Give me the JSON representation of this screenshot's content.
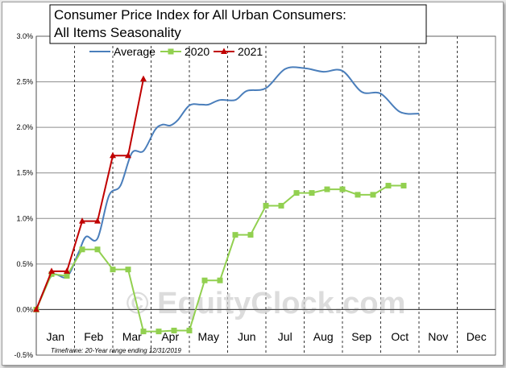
{
  "chart_data": {
    "type": "line",
    "title_lines": [
      "Consumer Price Index for All Urban Consumers:",
      "All Items Seasonality"
    ],
    "categories": [
      "Jan",
      "Feb",
      "Mar",
      "Apr",
      "May",
      "Jun",
      "Jul",
      "Aug",
      "Sep",
      "Oct",
      "Nov",
      "Dec"
    ],
    "ylim": [
      -0.5,
      3.0
    ],
    "yticks": [
      -0.5,
      0.0,
      0.5,
      1.0,
      1.5,
      2.0,
      2.5,
      3.0
    ],
    "ytick_labels": [
      "-0.5%",
      "0.0%",
      "0.5%",
      "1.0%",
      "1.5%",
      "2.0%",
      "2.5%",
      "3.0%"
    ],
    "grid": true,
    "legend_position": "top",
    "series": [
      {
        "name": "Average",
        "color": "#4a7ebb",
        "marker": "none",
        "points": [
          [
            0,
            0.0
          ],
          [
            0.4,
            0.37
          ],
          [
            0.8,
            0.36
          ],
          [
            1.1,
            0.62
          ],
          [
            1.3,
            0.8
          ],
          [
            1.6,
            0.78
          ],
          [
            1.9,
            1.25
          ],
          [
            2.2,
            1.36
          ],
          [
            2.5,
            1.72
          ],
          [
            2.8,
            1.74
          ],
          [
            3.1,
            1.97
          ],
          [
            3.3,
            2.03
          ],
          [
            3.5,
            2.02
          ],
          [
            3.7,
            2.08
          ],
          [
            4.0,
            2.24
          ],
          [
            4.3,
            2.25
          ],
          [
            4.5,
            2.25
          ],
          [
            4.8,
            2.3
          ],
          [
            5.2,
            2.3
          ],
          [
            5.5,
            2.4
          ],
          [
            6.0,
            2.43
          ],
          [
            6.5,
            2.64
          ],
          [
            7.0,
            2.65
          ],
          [
            7.5,
            2.61
          ],
          [
            8.0,
            2.62
          ],
          [
            8.5,
            2.39
          ],
          [
            9.0,
            2.37
          ],
          [
            9.5,
            2.17
          ],
          [
            10.0,
            2.15
          ]
        ]
      },
      {
        "name": "2020",
        "color": "#92d050",
        "marker": "square",
        "points": [
          [
            0,
            0.0
          ],
          [
            0.4,
            0.39
          ],
          [
            0.8,
            0.37
          ],
          [
            1.2,
            0.66
          ],
          [
            1.6,
            0.66
          ],
          [
            2.0,
            0.44
          ],
          [
            2.4,
            0.44
          ],
          [
            2.8,
            -0.24
          ],
          [
            3.2,
            -0.24
          ],
          [
            3.6,
            -0.23
          ],
          [
            4.0,
            -0.23
          ],
          [
            4.4,
            0.32
          ],
          [
            4.8,
            0.32
          ],
          [
            5.2,
            0.82
          ],
          [
            5.6,
            0.82
          ],
          [
            6.0,
            1.14
          ],
          [
            6.4,
            1.14
          ],
          [
            6.8,
            1.28
          ],
          [
            7.2,
            1.28
          ],
          [
            7.6,
            1.32
          ],
          [
            8.0,
            1.32
          ],
          [
            8.4,
            1.26
          ],
          [
            8.8,
            1.26
          ],
          [
            9.2,
            1.36
          ],
          [
            9.6,
            1.36
          ]
        ]
      },
      {
        "name": "2021",
        "color": "#c00000",
        "marker": "triangle",
        "points": [
          [
            0,
            0.0
          ],
          [
            0.4,
            0.42
          ],
          [
            0.8,
            0.42
          ],
          [
            1.2,
            0.97
          ],
          [
            1.6,
            0.97
          ],
          [
            2.0,
            1.69
          ],
          [
            2.4,
            1.69
          ],
          [
            2.8,
            2.53
          ]
        ]
      }
    ],
    "annotations": {
      "timeframe": "Timeframe: 20-Year range ending 12/31/2019",
      "watermark": "© EquityClock.com"
    }
  }
}
